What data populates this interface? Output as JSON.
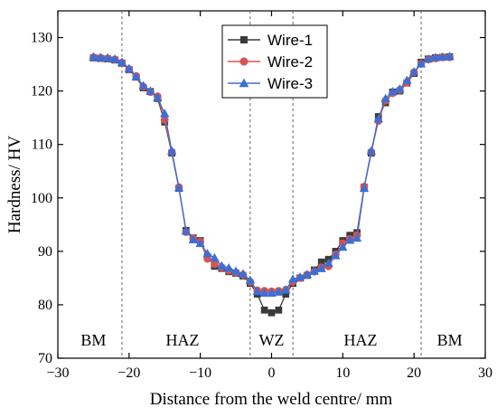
{
  "chart_data": {
    "type": "line",
    "xlabel": "Distance from the weld centre/ mm",
    "ylabel": "Hardness/ HV",
    "xlim": [
      -30,
      30
    ],
    "ylim": [
      70,
      135
    ],
    "xticks": [
      -30,
      -20,
      -10,
      0,
      10,
      20,
      30
    ],
    "yticks": [
      70,
      80,
      90,
      100,
      110,
      120,
      130
    ],
    "grid": false,
    "legend": "top-center",
    "boundaries": [
      -21,
      -3,
      3,
      21
    ],
    "regions": [
      {
        "label": "BM",
        "x": -25
      },
      {
        "label": "HAZ",
        "x": -12.5
      },
      {
        "label": "WZ",
        "x": 0
      },
      {
        "label": "HAZ",
        "x": 12.5
      },
      {
        "label": "BM",
        "x": 25
      }
    ],
    "series": [
      {
        "name": "Wire-1",
        "color": "#3a3a3a",
        "marker": "square",
        "x": [
          -25,
          -24,
          -23,
          -22,
          -21,
          -20,
          -19,
          -18,
          -17,
          -16,
          -15,
          -14,
          -13,
          -12,
          -11,
          -10,
          -9,
          -8,
          -7,
          -6,
          -5,
          -4,
          -3,
          -2,
          -1,
          0,
          1,
          2,
          3,
          4,
          5,
          6,
          7,
          8,
          9,
          10,
          11,
          12,
          13,
          14,
          15,
          16,
          17,
          18,
          19,
          20,
          21,
          22,
          23,
          24,
          25
        ],
        "values": [
          126.2,
          126.1,
          126.0,
          125.8,
          125.2,
          124.0,
          122.6,
          120.6,
          119.9,
          118.6,
          114.2,
          108.4,
          101.8,
          93.9,
          92.5,
          92.0,
          89.0,
          87.2,
          86.8,
          86.2,
          85.9,
          85.4,
          84.0,
          82.0,
          79.0,
          78.5,
          79.0,
          82.0,
          84.0,
          85.0,
          85.5,
          86.5,
          88.0,
          88.5,
          90.0,
          92.0,
          93.0,
          93.5,
          102.0,
          108.4,
          115.2,
          117.8,
          119.8,
          120.0,
          121.5,
          123.3,
          125.4,
          126.0,
          126.2,
          126.3,
          126.4
        ]
      },
      {
        "name": "Wire-2",
        "color": "#d9534f",
        "marker": "circle",
        "x": [
          -25,
          -24,
          -23,
          -22,
          -21,
          -20,
          -19,
          -18,
          -17,
          -16,
          -15,
          -14,
          -13,
          -12,
          -11,
          -10,
          -9,
          -8,
          -7,
          -6,
          -5,
          -4,
          -3,
          -2,
          -1,
          0,
          1,
          2,
          3,
          4,
          5,
          6,
          7,
          8,
          9,
          10,
          11,
          12,
          13,
          14,
          15,
          16,
          17,
          18,
          19,
          20,
          21,
          22,
          23,
          24,
          25
        ],
        "values": [
          126.3,
          126.2,
          126.1,
          125.9,
          125.3,
          124.1,
          122.8,
          120.8,
          119.8,
          119.0,
          114.6,
          108.6,
          102.0,
          93.6,
          92.4,
          91.8,
          88.6,
          87.6,
          87.0,
          86.4,
          86.0,
          85.6,
          84.3,
          82.7,
          82.6,
          82.5,
          82.6,
          82.8,
          84.3,
          85.0,
          85.6,
          86.2,
          87.0,
          87.2,
          89.4,
          91.5,
          92.3,
          93.0,
          102.1,
          108.6,
          114.4,
          118.2,
          119.6,
          120.2,
          121.6,
          123.5,
          125.1,
          125.9,
          126.1,
          126.3,
          126.3
        ]
      },
      {
        "name": "Wire-3",
        "color": "#3b6fd6",
        "marker": "triangle",
        "x": [
          -25,
          -24,
          -23,
          -22,
          -21,
          -20,
          -19,
          -18,
          -17,
          -16,
          -15,
          -14,
          -13,
          -12,
          -11,
          -10,
          -9,
          -8,
          -7,
          -6,
          -5,
          -4,
          -3,
          -2,
          -1,
          0,
          1,
          2,
          3,
          4,
          5,
          6,
          7,
          8,
          9,
          10,
          11,
          12,
          13,
          14,
          15,
          16,
          17,
          18,
          19,
          20,
          21,
          22,
          23,
          24,
          25
        ],
        "values": [
          126.4,
          126.3,
          126.2,
          126.0,
          125.4,
          124.2,
          122.7,
          121.0,
          120.0,
          118.8,
          115.8,
          108.8,
          101.9,
          93.8,
          92.2,
          91.5,
          89.6,
          88.8,
          87.3,
          86.9,
          86.3,
          85.8,
          84.6,
          82.5,
          82.2,
          82.2,
          82.4,
          82.8,
          84.8,
          85.2,
          85.7,
          86.3,
          86.8,
          87.8,
          89.2,
          90.8,
          92.1,
          92.5,
          101.8,
          108.8,
          114.8,
          118.6,
          119.9,
          120.4,
          122.0,
          123.6,
          125.1,
          126.0,
          126.3,
          126.4,
          126.5
        ]
      }
    ]
  }
}
